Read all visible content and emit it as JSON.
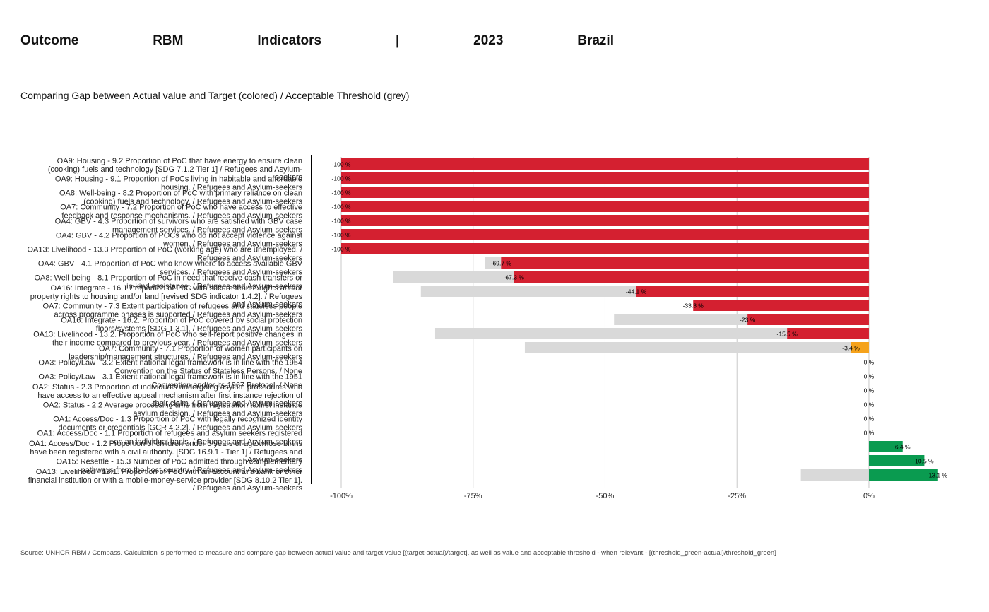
{
  "chart_data": {
    "type": "bar",
    "orientation": "horizontal",
    "title": "Outcome RBM Indicators | 2023 Brazil",
    "subtitle": "Comparing Gap between Actual value and Target (colored) / Acceptable Threshold (grey)",
    "source": "Source: UNHCR RBM / Compass. Calculation is performed to measure and compare gap between actual value and target value [(target-actual)/target], as well as value and acceptable threshold - when relevant - [(threshold_green-actual)/threshold_green]",
    "categories": [
      "OA9: Housing - 9.2 Proportion of PoC that have energy to ensure clean (cooking) fuels and technology [SDG 7.1.2 Tier 1] / Refugees and Asylum-seekers",
      "OA9: Housing - 9.1 Proportion of PoCs living in habitable and affordable housing. / Refugees and Asylum-seekers",
      "OA8: Well-being - 8.2 Proportion of PoC with primary reliance on clean (cooking) fuels and technology. / Refugees and Asylum-seekers",
      "OA7: Community - 7.2 Proportion of PoC who have access to effective feedback and response mechanisms. / Refugees and Asylum-seekers",
      "OA4: GBV - 4.3 Proportion of survivors who are satisfied with GBV case management services. / Refugees and Asylum-seekers",
      "OA4: GBV - 4.2 Proportion of POCs who do not accept violence against women. / Refugees and Asylum-seekers",
      "OA13: Livelihood - 13.3 Proportion of PoC (working age) who are unemployed. / Refugees and Asylum-seekers",
      "OA4: GBV - 4.1 Proportion of PoC who know where to access available GBV services. / Refugees and Asylum-seekers",
      "OA8: Well-being - 8.1 Proportion of PoC in need that receive cash transfers or in-kind assistance. / Refugees and Asylum-seekers",
      "OA16: Integrate - 16.1 Proportion of PoC with secure tenure rights and/or property rights to housing and/or land [revised SDG indicator 1.4.2]. / Refugees and Asylum-seekers",
      "OA7: Community - 7.3 Extent participation of refugees and stateless people across programme phases is supported / Refugees and Asylum-seekers",
      "OA16: Integrate - 16.2. Proportion of PoC covered by social protection floors/systems [SDG 1.3.1]. / Refugees and Asylum-seekers",
      "OA13: Livelihood - 13.2. Proportion of PoC who self-report positive changes in their income compared to previous year. / Refugees and Asylum-seekers",
      "OA7: Community - 7.1 Proportion of women participants on leadership/management structures. / Refugees and Asylum-seekers",
      "OA3: Policy/Law - 3.2 Extent national legal framework is in line with the 1954 Convention on the Status of Stateless Persons. / None",
      "OA3: Policy/Law - 3.1 Extent national legal framework is in line with the 1951 Convention and/or its 1967 Protocol. / None",
      "OA2: Status - 2.3 Proportion of individuals undergoing asylum procedures who have access to an effective appeal mechanism after first instance rejection of their claim. / Refugees and Asylum-seekers",
      "OA2: Status - 2.2 Average processing time from registration to first instance asylum decision. / Refugees and Asylum-seekers",
      "OA1: Access/Doc - 1.3 Proportion of PoC with legally recognized identity documents or credentials [GCR 4.2.2]. / Refugees and Asylum-seekers",
      "OA1: Access/Doc - 1.1 Proportion of refugees and asylum seekers registered on an individual basis. / Refugees and Asylum-seekers",
      "OA1: Access/Doc - 1.2 Proportion of children under 5 years of age whose births have been registered with a civil authority. [SDG 16.9.1 - Tier 1] / Refugees and Asylum-seekers",
      "OA15: Resettle - 15.3 Number of PoC admitted through complementary pathways from the host country. / Refugees and Asylum-seekers",
      "OA13: Livelihood - 13.1. Proportion of PoC with an account at a bank or other financial institution or with a mobile-money-service provider [SDG 8.10.2 Tier 1]. / Refugees and Asylum-seekers"
    ],
    "values": [
      -100,
      -100,
      -100,
      -100,
      -100,
      -100,
      -100,
      -69.7,
      -67.3,
      -44.1,
      -33.3,
      -23,
      -15.5,
      -3.4,
      0,
      0,
      0,
      0,
      0,
      0,
      6.4,
      10.5,
      13.1
    ],
    "value_labels": [
      "-100 %",
      "-100 %",
      "-100 %",
      "-100 %",
      "-100 %",
      "-100 %",
      "-100 %",
      "-69.7 %",
      "-67.3 %",
      "-44.1 %",
      "-33.3 %",
      "-23 %",
      "-15.5 %",
      "-3.4 %",
      "0 %",
      "0 %",
      "0 %",
      "0 %",
      "0 %",
      "0 %",
      "6.4 %",
      "10.5 %",
      "13.1 %"
    ],
    "colors": [
      "#d42030",
      "#d42030",
      "#d42030",
      "#d42030",
      "#d42030",
      "#d42030",
      "#d42030",
      "#d42030",
      "#d42030",
      "#d42030",
      "#d42030",
      "#d42030",
      "#d42030",
      "#f5a21b",
      "#d42030",
      "#d42030",
      "#d42030",
      "#d42030",
      "#d42030",
      "#d42030",
      "#0a9b50",
      "#0a9b50",
      "#0a9b50"
    ],
    "threshold_values": [
      null,
      null,
      null,
      null,
      null,
      null,
      null,
      -72.7,
      -90.2,
      -84.9,
      null,
      -48.3,
      -82.2,
      -65.2,
      null,
      null,
      null,
      null,
      null,
      null,
      null,
      null,
      -12.9
    ],
    "threshold_color": "#d9d9d9",
    "xlim": [
      -100,
      15
    ],
    "xticks": [
      {
        "value": -100,
        "label": "-100%"
      },
      {
        "value": -75,
        "label": "-75%"
      },
      {
        "value": -50,
        "label": "-50%"
      },
      {
        "value": -25,
        "label": "-25%"
      },
      {
        "value": 0,
        "label": "0%"
      }
    ],
    "grid": true
  }
}
